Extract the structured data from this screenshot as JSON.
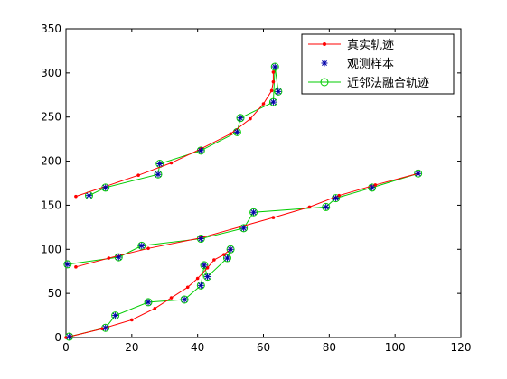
{
  "chart_data": {
    "type": "line",
    "xlim": [
      0,
      120
    ],
    "ylim": [
      0,
      350
    ],
    "x_ticks": [
      0,
      20,
      40,
      60,
      80,
      100,
      120
    ],
    "y_ticks": [
      0,
      50,
      100,
      150,
      200,
      250,
      300,
      350
    ],
    "grid": false,
    "legend_position": "top-right",
    "legend": [
      "真实轨迹",
      "观测样本",
      "近邻法融合轨迹"
    ],
    "colors": {
      "true_track": "#ff0000",
      "samples": "#0000aa",
      "fused": "#00cc00",
      "axes": "#000000"
    },
    "series": [
      {
        "name": "真实轨迹",
        "segments": [
          {
            "x": [
              0,
              11,
              20,
              27,
              32,
              37,
              40,
              43,
              45,
              48,
              50
            ],
            "y": [
              0,
              10,
              20,
              33,
              45,
              57,
              67,
              79,
              88,
              94,
              100
            ]
          },
          {
            "x": [
              3,
              13,
              25,
              41,
              63,
              74,
              83,
              94,
              107
            ],
            "y": [
              80,
              90,
              101,
              113,
              136,
              148,
              161,
              173,
              186
            ]
          },
          {
            "x": [
              3,
              22,
              32,
              41,
              50,
              56,
              60,
              62.5,
              63,
              63
            ],
            "y": [
              160,
              184,
              198,
              214,
              231,
              248,
              265,
              280,
              290,
              301
            ]
          }
        ]
      },
      {
        "name": "观测样本",
        "segments": [
          {
            "x": [
              1,
              12,
              15,
              25,
              36,
              41,
              42,
              43,
              49,
              50
            ],
            "y": [
              1,
              11,
              25,
              40,
              43,
              59,
              82,
              69,
              90,
              100
            ]
          },
          {
            "x": [
              0.5,
              16,
              23,
              41,
              54,
              57,
              79,
              82,
              93,
              107
            ],
            "y": [
              83,
              91,
              104,
              112,
              124,
              142,
              148,
              158,
              170,
              186
            ]
          },
          {
            "x": [
              7,
              12,
              28,
              28.5,
              41,
              52,
              53,
              63,
              63.5,
              64.5
            ],
            "y": [
              161,
              170,
              185,
              197,
              212,
              233,
              249,
              267,
              307,
              279
            ]
          }
        ]
      },
      {
        "name": "近邻法融合轨迹",
        "segments": [
          {
            "x": [
              1,
              12,
              15,
              25,
              36,
              41,
              42,
              43,
              49,
              50
            ],
            "y": [
              1,
              11,
              25,
              40,
              43,
              59,
              82,
              69,
              90,
              100
            ]
          },
          {
            "x": [
              0.5,
              16,
              23,
              41,
              54,
              57,
              79,
              82,
              93,
              107
            ],
            "y": [
              83,
              91,
              104,
              112,
              124,
              142,
              148,
              158,
              170,
              186
            ]
          },
          {
            "x": [
              7,
              12,
              28,
              28.5,
              41,
              52,
              53,
              63,
              63.5,
              64.5
            ],
            "y": [
              161,
              170,
              185,
              197,
              212,
              233,
              249,
              267,
              307,
              279
            ]
          }
        ]
      }
    ]
  }
}
